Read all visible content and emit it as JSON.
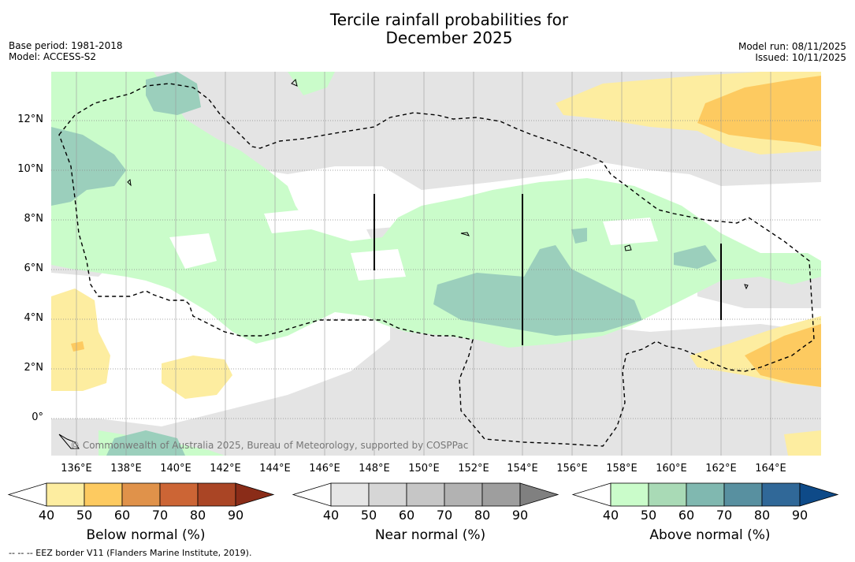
{
  "title_line1": "Tercile rainfall probabilities for",
  "title_line2": "December 2025",
  "base_period": "Base period: 1981-2018",
  "model": "Model: ACCESS-S2",
  "model_run": "Model run: 08/11/2025",
  "issued": "Issued: 10/11/2025",
  "copyright": "© Commonwealth of Australia 2025, Bureau of Meteorology, supported by COSPPac",
  "footnote": "--  --  -- EEZ border V11 (Flanders Marine Institute, 2019).",
  "lon_labels": [
    "136°E",
    "138°E",
    "140°E",
    "142°E",
    "144°E",
    "146°E",
    "148°E",
    "150°E",
    "152°E",
    "154°E",
    "156°E",
    "158°E",
    "160°E",
    "162°E",
    "164°E"
  ],
  "lat_labels": [
    "12°N",
    "10°N",
    "8°N",
    "6°N",
    "4°N",
    "2°N",
    "0°"
  ],
  "colorbars": [
    {
      "label": "Below normal (%)",
      "ticks": [
        "40",
        "50",
        "60",
        "70",
        "80",
        "90"
      ],
      "colors": [
        "#ffffff",
        "#fdeda0",
        "#fdca60",
        "#e0924a",
        "#cc6535",
        "#aa4525",
        "#8a2c18"
      ]
    },
    {
      "label": "Near normal (%)",
      "ticks": [
        "40",
        "50",
        "60",
        "70",
        "80",
        "90"
      ],
      "colors": [
        "#ffffff",
        "#e6e6e6",
        "#d6d6d6",
        "#c6c6c6",
        "#b2b2b2",
        "#9e9e9e",
        "#808080"
      ]
    },
    {
      "label": "Above normal (%)",
      "ticks": [
        "40",
        "50",
        "60",
        "70",
        "80",
        "90"
      ],
      "colors": [
        "#ffffff",
        "#cafcca",
        "#a9dab6",
        "#80b8b0",
        "#5890a0",
        "#306898",
        "#0e4a88"
      ]
    }
  ],
  "colors": {
    "above50": "#cafcca",
    "above60": "#9bcfbc",
    "near": "#e4e4e4",
    "below50": "#fdeda0",
    "below60": "#fdca60",
    "white": "#ffffff"
  }
}
